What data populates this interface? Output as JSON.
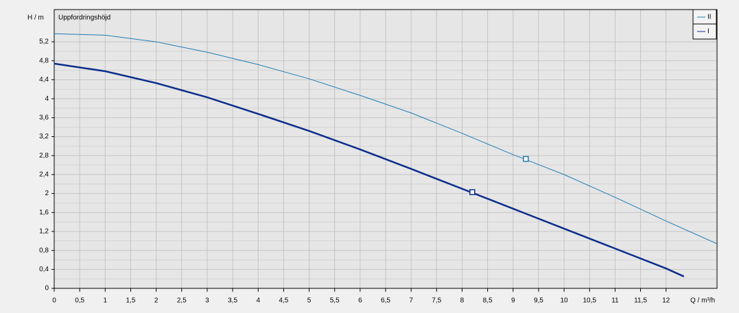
{
  "chart_data": {
    "type": "line",
    "y_axis_label": "H / m",
    "y_axis_title": "Uppfordringshöjd",
    "x_axis_label": "Q / m³/h",
    "xlim": [
      0,
      13
    ],
    "ylim": [
      0,
      5.88
    ],
    "xticks": [
      0,
      {
        "value": 0.5,
        "label": "0,5"
      },
      1,
      {
        "value": 1.5,
        "label": "1,5"
      },
      2,
      {
        "value": 2.5,
        "label": "2,5"
      },
      3,
      {
        "value": 3.5,
        "label": "3,5"
      },
      4,
      {
        "value": 4.5,
        "label": "4,5"
      },
      5,
      {
        "value": 5.5,
        "label": "5,5"
      },
      6,
      {
        "value": 6.5,
        "label": "6,5"
      },
      7,
      {
        "value": 7.5,
        "label": "7,5"
      },
      8,
      {
        "value": 8.5,
        "label": "8,5"
      },
      9,
      {
        "value": 9.5,
        "label": "9,5"
      },
      10,
      {
        "value": 10.5,
        "label": "10,5"
      },
      11,
      {
        "value": 11.5,
        "label": "11,5"
      },
      12
    ],
    "yticks": [
      0,
      {
        "value": 0.4,
        "label": "0,4"
      },
      {
        "value": 0.8,
        "label": "0,8"
      },
      {
        "value": 1.2,
        "label": "1,2"
      },
      {
        "value": 1.6,
        "label": "1,6"
      },
      2,
      {
        "value": 2.4,
        "label": "2,4"
      },
      {
        "value": 2.8,
        "label": "2,8"
      },
      {
        "value": 3.2,
        "label": "3,2"
      },
      {
        "value": 3.6,
        "label": "3,6"
      },
      4,
      {
        "value": 4.4,
        "label": "4,4"
      },
      {
        "value": 4.8,
        "label": "4,8"
      },
      {
        "value": 5.2,
        "label": "5,2"
      }
    ],
    "grid": true,
    "series": [
      {
        "name": "II",
        "color": "#1f7bb5",
        "width": 1,
        "x": [
          0,
          1,
          2,
          3,
          4,
          5,
          6,
          7,
          8,
          9,
          10,
          11,
          12,
          13
        ],
        "values": [
          5.37,
          5.34,
          5.2,
          4.98,
          4.72,
          4.42,
          4.07,
          3.7,
          3.27,
          2.82,
          2.4,
          1.92,
          1.42,
          0.94
        ],
        "operating_point": {
          "x": 9.25,
          "y": 2.73
        }
      },
      {
        "name": "I",
        "color": "#0b2d8c",
        "width": 2.5,
        "x": [
          0,
          1,
          2,
          3,
          4,
          5,
          6,
          7,
          8,
          9,
          10,
          11,
          12,
          12.35
        ],
        "values": [
          4.74,
          4.58,
          4.33,
          4.03,
          3.68,
          3.32,
          2.93,
          2.52,
          2.1,
          1.68,
          1.26,
          0.84,
          0.42,
          0.25
        ],
        "operating_point": {
          "x": 8.2,
          "y": 2.03
        }
      }
    ]
  }
}
